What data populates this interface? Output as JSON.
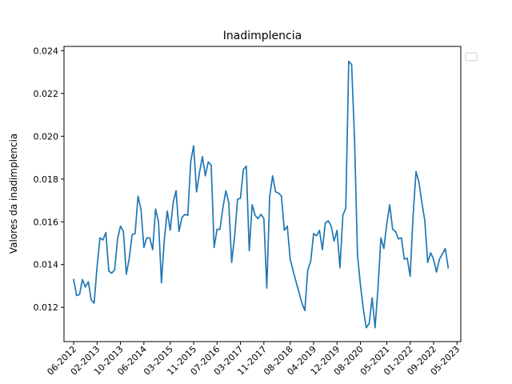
{
  "chart_data": {
    "type": "line",
    "title": "Inadimplencia",
    "xlabel": "",
    "ylabel": "Valores da inadimplencia",
    "ylim": [
      0.0104,
      0.0242
    ],
    "yticks": [
      0.012,
      0.014,
      0.016,
      0.018,
      0.02,
      0.022,
      0.024
    ],
    "ytick_labels": [
      "0.012",
      "0.014",
      "0.016",
      "0.018",
      "0.020",
      "0.022",
      "0.024"
    ],
    "xtick_labels": [
      "06-2012",
      "02-2013",
      "10-2013",
      "06-2014",
      "03-2015",
      "11-2015",
      "07-2016",
      "03-2017",
      "11-2017",
      "08-2018",
      "04-2019",
      "12-2019",
      "08-2020",
      "05-2021",
      "01-2022",
      "09-2022",
      "05-2023"
    ],
    "xtick_positions": [
      0,
      8,
      16,
      24,
      33,
      41,
      49,
      57,
      65,
      74,
      82,
      90,
      98,
      107,
      115,
      123,
      131
    ],
    "xlim": [
      -3.3,
      132.3
    ],
    "legend": "top-right (empty)",
    "grid": false,
    "color": "#1f77b4",
    "series": [
      {
        "x_start": "06-2012",
        "values": [
          0.0133,
          0.01255,
          0.0126,
          0.0133,
          0.01295,
          0.0132,
          0.01235,
          0.0122,
          0.0139,
          0.01525,
          0.01515,
          0.0155,
          0.0137,
          0.0136,
          0.01375,
          0.0152,
          0.0158,
          0.01555,
          0.01355,
          0.0143,
          0.0154,
          0.01545,
          0.0172,
          0.0166,
          0.0148,
          0.01525,
          0.01525,
          0.0147,
          0.0166,
          0.016,
          0.01315,
          0.0152,
          0.0165,
          0.0156,
          0.0169,
          0.01745,
          0.01555,
          0.0162,
          0.01635,
          0.0163,
          0.0188,
          0.01955,
          0.0174,
          0.0183,
          0.01905,
          0.01815,
          0.0188,
          0.01865,
          0.0148,
          0.01565,
          0.01565,
          0.01665,
          0.01745,
          0.0169,
          0.0141,
          0.0153,
          0.01705,
          0.0171,
          0.01845,
          0.0186,
          0.01465,
          0.0168,
          0.0163,
          0.01615,
          0.01635,
          0.01615,
          0.0129,
          0.0172,
          0.01815,
          0.0174,
          0.01735,
          0.0172,
          0.0156,
          0.0158,
          0.01425,
          0.0137,
          0.0132,
          0.0127,
          0.0122,
          0.01185,
          0.01375,
          0.01415,
          0.01545,
          0.01535,
          0.0156,
          0.0147,
          0.01595,
          0.01605,
          0.0158,
          0.0151,
          0.0156,
          0.01385,
          0.0163,
          0.01665,
          0.0235,
          0.02335,
          0.0198,
          0.01445,
          0.01305,
          0.0119,
          0.01105,
          0.01125,
          0.01245,
          0.01105,
          0.0129,
          0.01525,
          0.01475,
          0.0159,
          0.0168,
          0.01565,
          0.01555,
          0.0152,
          0.01525,
          0.01425,
          0.0143,
          0.01345,
          0.0163,
          0.01835,
          0.01785,
          0.0169,
          0.01605,
          0.0141,
          0.01455,
          0.01425,
          0.01365,
          0.01425,
          0.0145,
          0.01475,
          0.01385
        ]
      }
    ]
  }
}
